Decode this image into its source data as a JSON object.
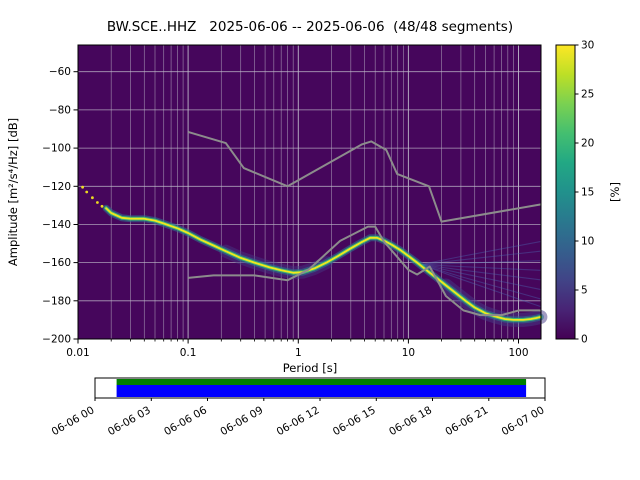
{
  "chart_data": {
    "type": "heatmap",
    "title": "BW.SCE..HHZ   2025-06-06 -- 2025-06-06  (48/48 segments)",
    "xlabel": "Period [s]",
    "ylabel": "Amplitude [m²/s⁴/Hz] [dB]",
    "xscale": "log",
    "xlim": [
      0.01,
      160
    ],
    "ylim": [
      -200,
      -46
    ],
    "grid": true,
    "background_color": "#46065c",
    "grid_color": "#beb9c9",
    "noise_model_color": "#8c8c8c",
    "band_colors": {
      "core": "#f4e61e",
      "mid": "#3cbc74",
      "glow": "#2d6f8e",
      "faint": "#453a85",
      "fan": "#4d6fb8"
    },
    "x_ticks": [
      {
        "value": 0.01,
        "label": "0.01"
      },
      {
        "value": 0.1,
        "label": "0.1"
      },
      {
        "value": 1,
        "label": "1"
      },
      {
        "value": 10,
        "label": "10"
      },
      {
        "value": 100,
        "label": "100"
      }
    ],
    "y_ticks": [
      {
        "value": -60,
        "label": "−60"
      },
      {
        "value": -80,
        "label": "−80"
      },
      {
        "value": -100,
        "label": "−100"
      },
      {
        "value": -120,
        "label": "−120"
      },
      {
        "value": -140,
        "label": "−140"
      },
      {
        "value": -160,
        "label": "−160"
      },
      {
        "value": -180,
        "label": "−180"
      },
      {
        "value": -200,
        "label": "−200"
      }
    ],
    "colorbar": {
      "label": "[%]",
      "min": 0,
      "max": 30,
      "ticks": [
        {
          "value": 0,
          "label": "0"
        },
        {
          "value": 5,
          "label": "5"
        },
        {
          "value": 10,
          "label": "10"
        },
        {
          "value": 15,
          "label": "15"
        },
        {
          "value": 20,
          "label": "20"
        },
        {
          "value": 25,
          "label": "25"
        },
        {
          "value": 30,
          "label": "30"
        }
      ],
      "colormap": "viridis",
      "gradient": [
        [
          "0",
          "#440154"
        ],
        [
          "0.1",
          "#482475"
        ],
        [
          "0.2",
          "#414487"
        ],
        [
          "0.3",
          "#355f8d"
        ],
        [
          "0.4",
          "#2a788e"
        ],
        [
          "0.5",
          "#21918c"
        ],
        [
          "0.6",
          "#22a884"
        ],
        [
          "0.7",
          "#44bf70"
        ],
        [
          "0.8",
          "#7ad151"
        ],
        [
          "0.9",
          "#bddf26"
        ],
        [
          "1",
          "#fde725"
        ]
      ]
    },
    "psd_mode": [
      [
        0.018,
        -131.5
      ],
      [
        0.02,
        -134
      ],
      [
        0.025,
        -136.5
      ],
      [
        0.03,
        -137
      ],
      [
        0.04,
        -137
      ],
      [
        0.05,
        -138
      ],
      [
        0.06,
        -139.5
      ],
      [
        0.08,
        -142
      ],
      [
        0.1,
        -144.5
      ],
      [
        0.13,
        -148
      ],
      [
        0.17,
        -151
      ],
      [
        0.22,
        -154
      ],
      [
        0.3,
        -157.5
      ],
      [
        0.4,
        -160
      ],
      [
        0.55,
        -162.5
      ],
      [
        0.7,
        -164
      ],
      [
        0.9,
        -165.3
      ],
      [
        1.1,
        -165
      ],
      [
        1.4,
        -163
      ],
      [
        1.8,
        -160
      ],
      [
        2.3,
        -156.5
      ],
      [
        3,
        -152.5
      ],
      [
        3.7,
        -149.5
      ],
      [
        4.5,
        -147
      ],
      [
        5.2,
        -147
      ],
      [
        6,
        -148.5
      ],
      [
        7,
        -150.5
      ],
      [
        8.5,
        -153.5
      ],
      [
        10,
        -156.5
      ],
      [
        12,
        -160
      ],
      [
        15,
        -164.5
      ],
      [
        18,
        -168
      ],
      [
        22,
        -172
      ],
      [
        27,
        -176
      ],
      [
        33,
        -180
      ],
      [
        40,
        -183.5
      ],
      [
        50,
        -186.5
      ],
      [
        60,
        -188
      ],
      [
        75,
        -189.5
      ],
      [
        90,
        -190
      ],
      [
        110,
        -190
      ],
      [
        130,
        -189.5
      ],
      [
        145,
        -189
      ],
      [
        158,
        -188.5
      ]
    ],
    "speckles": [
      [
        0.011,
        -120.5
      ],
      [
        0.012,
        -123
      ],
      [
        0.0135,
        -126
      ],
      [
        0.015,
        -128.5
      ],
      [
        0.0165,
        -130.5
      ]
    ],
    "fan": {
      "origin": [
        13,
        -161
      ],
      "mid_x": 30,
      "end_x": 158,
      "ends": [
        -149,
        -154,
        -159,
        -164,
        -169,
        -174,
        -179,
        -183
      ]
    },
    "noise_models": {
      "high": [
        [
          0.1,
          -91.5
        ],
        [
          0.22,
          -97.4
        ],
        [
          0.32,
          -110.5
        ],
        [
          0.8,
          -120
        ],
        [
          3.8,
          -98
        ],
        [
          4.6,
          -96.5
        ],
        [
          6.3,
          -101
        ],
        [
          7.9,
          -113.5
        ],
        [
          15.4,
          -120
        ],
        [
          20,
          -138.5
        ],
        [
          160,
          -129.5
        ]
      ],
      "low": [
        [
          0.1,
          -168
        ],
        [
          0.17,
          -166.7
        ],
        [
          0.4,
          -166.7
        ],
        [
          0.8,
          -169.2
        ],
        [
          1.24,
          -163.7
        ],
        [
          2.4,
          -148.6
        ],
        [
          4.3,
          -141.1
        ],
        [
          5,
          -141.1
        ],
        [
          6,
          -149
        ],
        [
          10,
          -163.8
        ],
        [
          12,
          -166.2
        ],
        [
          15.6,
          -162.1
        ],
        [
          21.9,
          -177.5
        ],
        [
          31.6,
          -185
        ],
        [
          45,
          -187.5
        ],
        [
          70,
          -187.5
        ],
        [
          101,
          -185
        ],
        [
          154,
          -185
        ],
        [
          160,
          -185.2
        ]
      ]
    }
  },
  "timeline": {
    "labels": [
      "06-06 00",
      "06-06 03",
      "06-06 06",
      "06-06 09",
      "06-06 12",
      "06-06 15",
      "06-06 18",
      "06-06 21",
      "06-07 00"
    ],
    "coverage": {
      "start": 0.048,
      "end": 0.958
    },
    "box_color": "#ffffff",
    "border_color": "#000000",
    "green": "#007f00",
    "blue": "#0000ff"
  }
}
